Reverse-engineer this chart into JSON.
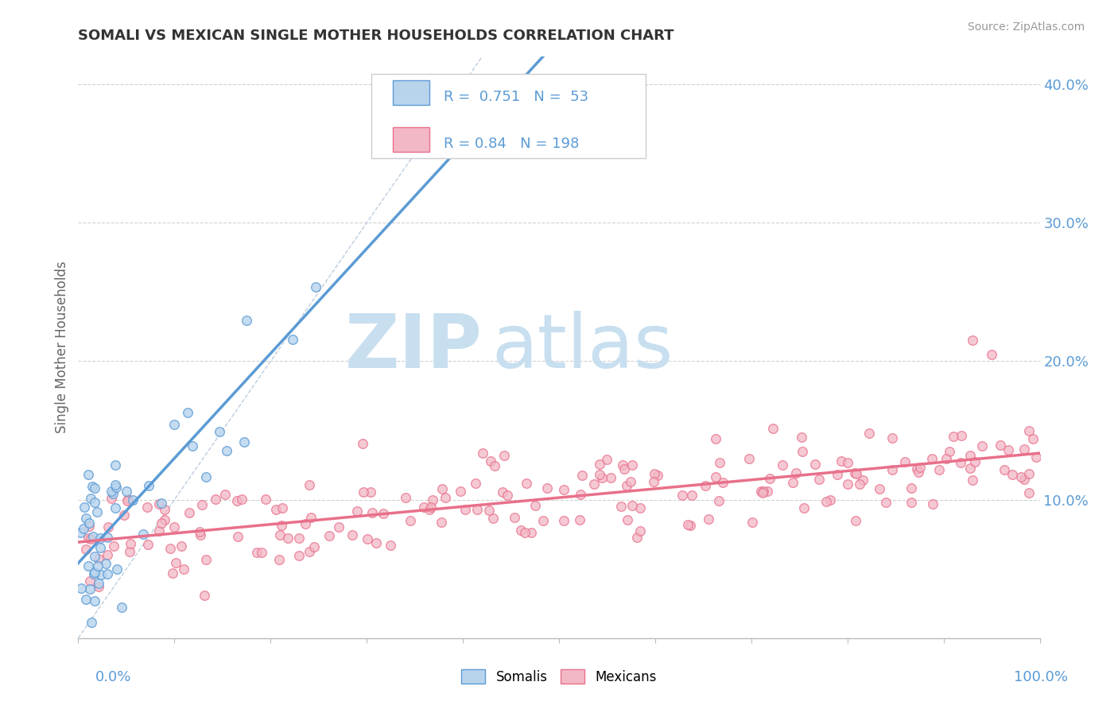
{
  "title": "SOMALI VS MEXICAN SINGLE MOTHER HOUSEHOLDS CORRELATION CHART",
  "source": "Source: ZipAtlas.com",
  "ylabel": "Single Mother Households",
  "somali_R": 0.751,
  "somali_N": 53,
  "mexican_R": 0.84,
  "mexican_N": 198,
  "somali_color": "#5b9bd5",
  "somali_face": "#b8d4ed",
  "mexican_color": "#e8708a",
  "mexican_face": "#f2b8c6",
  "background_color": "#ffffff",
  "grid_color": "#cccccc",
  "watermark_zip": "ZIP",
  "watermark_atlas": "atlas",
  "watermark_color": "#c8dff0",
  "ref_line_color": "#a0b8d0",
  "tick_color": "#5b9bd5",
  "title_color": "#333333",
  "ylabel_color": "#666666",
  "source_color": "#999999",
  "legend_border": "#cccccc"
}
